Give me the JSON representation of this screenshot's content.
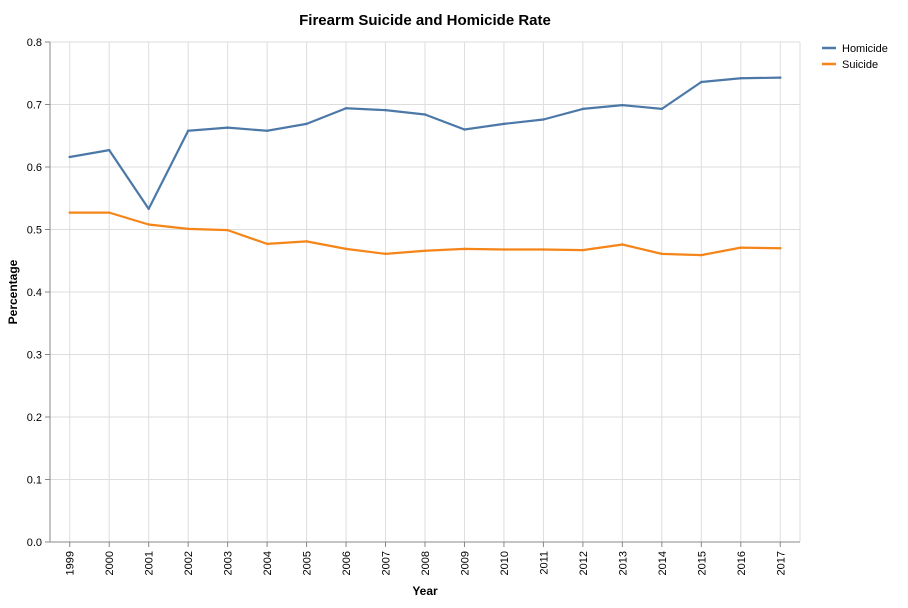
{
  "chart_data": {
    "type": "line",
    "title": "Firearm Suicide and Homicide Rate",
    "xlabel": "Year",
    "ylabel": "Percentage",
    "ylim": [
      0,
      0.8
    ],
    "yticks": [
      "0.0",
      "0.1",
      "0.2",
      "0.3",
      "0.4",
      "0.5",
      "0.6",
      "0.7",
      "0.8"
    ],
    "grid": true,
    "legend_position": "top-right",
    "categories": [
      "1999",
      "2000",
      "2001",
      "2002",
      "2003",
      "2004",
      "2005",
      "2006",
      "2007",
      "2008",
      "2009",
      "2010",
      "2011",
      "2012",
      "2013",
      "2014",
      "2015",
      "2016",
      "2017"
    ],
    "series": [
      {
        "name": "Homicide",
        "color": "#4c78a8",
        "values": [
          0.616,
          0.627,
          0.533,
          0.658,
          0.663,
          0.658,
          0.669,
          0.694,
          0.691,
          0.684,
          0.66,
          0.669,
          0.676,
          0.693,
          0.699,
          0.693,
          0.736,
          0.742,
          0.743
        ]
      },
      {
        "name": "Suicide",
        "color": "#f58518",
        "values": [
          0.527,
          0.527,
          0.508,
          0.501,
          0.499,
          0.477,
          0.481,
          0.469,
          0.461,
          0.466,
          0.469,
          0.468,
          0.468,
          0.467,
          0.476,
          0.461,
          0.459,
          0.471,
          0.47
        ]
      }
    ]
  }
}
